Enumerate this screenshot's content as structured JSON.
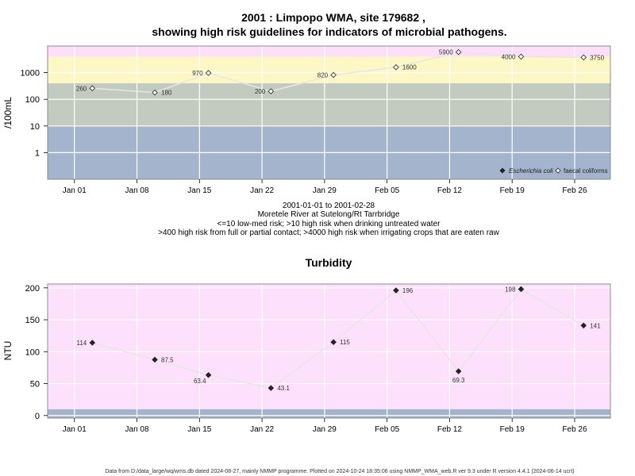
{
  "colors": {
    "band_low": "#a3b4cc",
    "band_mid": "#c3cbc0",
    "band_high": "#fdf6c5",
    "band_top": "#fde0f8",
    "turb_bg": "#fde0fc",
    "turb_low": "#a3b4cc",
    "line": "#e6e6e6",
    "grid": "#ffffff",
    "frame": "#8c8c8c"
  },
  "chart_data": [
    {
      "type": "line",
      "title": "2001 : Limpopo WMA, site 179682 ,",
      "subtitle": "showing high risk guidelines for indicators of microbial pathogens.",
      "ylabel": "/100mL",
      "yscale": "log",
      "ylim": [
        0.1,
        10000
      ],
      "yticks": [
        1,
        10,
        100,
        1000
      ],
      "ytick_labels": [
        "1",
        "10",
        "100",
        "1000"
      ],
      "xlim": [
        "2000-12-29",
        "2001-03-02"
      ],
      "xticks": [
        "2001-01-01",
        "2001-01-08",
        "2001-01-15",
        "2001-01-22",
        "2001-01-29",
        "2001-02-05",
        "2001-02-12",
        "2001-02-19",
        "2001-02-26"
      ],
      "xtick_labels": [
        "Jan 01",
        "Jan 08",
        "Jan 15",
        "Jan 22",
        "Jan 29",
        "Feb 05",
        "Feb 12",
        "Feb 19",
        "Feb 26"
      ],
      "grid": true,
      "bands": [
        {
          "from": 0.1,
          "to": 10,
          "color": "band_low"
        },
        {
          "from": 10,
          "to": 400,
          "color": "band_mid"
        },
        {
          "from": 400,
          "to": 4000,
          "color": "band_high"
        },
        {
          "from": 4000,
          "to": 10000,
          "color": "band_top"
        }
      ],
      "legend": {
        "position": "bottom-right",
        "entries": [
          {
            "label": "Escherichia coli",
            "marker": "filled-diamond",
            "italic": true
          },
          {
            "label": "faecal coliforms",
            "marker": "open-diamond",
            "italic": false
          }
        ]
      },
      "series": [
        {
          "name": "faecal coliforms",
          "marker": "open-diamond",
          "x": [
            "2001-01-03",
            "2001-01-10",
            "2001-01-16",
            "2001-01-23",
            "2001-01-30",
            "2001-02-06",
            "2001-02-13",
            "2001-02-20",
            "2001-02-27"
          ],
          "y": [
            260,
            180,
            970,
            200,
            820,
            1600,
            5900,
            4000,
            3750
          ],
          "labels": [
            "260",
            "180",
            "970",
            "200",
            "820",
            "1600",
            "5900",
            "4000",
            "3750"
          ]
        }
      ],
      "caption": [
        "2001-01-01 to 2001-02-28",
        "Moretele River at Sutelong/Rt Tarrbridge",
        "<=10 low-med risk; >10 high risk when drinking untreated water",
        ">400 high risk from full or partial contact; >4000 high risk when irrigating crops that are eaten raw"
      ]
    },
    {
      "type": "line",
      "title": "Turbidity",
      "ylabel": "NTU",
      "ylim": [
        -4,
        206
      ],
      "yticks": [
        0,
        50,
        100,
        150,
        200
      ],
      "ytick_labels": [
        "0",
        "50",
        "100",
        "150",
        "200"
      ],
      "xlim": [
        "2000-12-29",
        "2001-03-02"
      ],
      "xticks": [
        "2001-01-01",
        "2001-01-08",
        "2001-01-15",
        "2001-01-22",
        "2001-01-29",
        "2001-02-05",
        "2001-02-12",
        "2001-02-19",
        "2001-02-26"
      ],
      "xtick_labels": [
        "Jan 01",
        "Jan 08",
        "Jan 15",
        "Jan 22",
        "Jan 29",
        "Feb 05",
        "Feb 12",
        "Feb 19",
        "Feb 26"
      ],
      "grid": true,
      "bands": [
        {
          "from": -4,
          "to": 10,
          "color": "turb_low"
        },
        {
          "from": 10,
          "to": 206,
          "color": "turb_bg"
        }
      ],
      "series": [
        {
          "marker": "filled-diamond",
          "x": [
            "2001-01-03",
            "2001-01-10",
            "2001-01-16",
            "2001-01-23",
            "2001-01-30",
            "2001-02-06",
            "2001-02-13",
            "2001-02-20",
            "2001-02-27"
          ],
          "y": [
            114,
            87.5,
            63.4,
            43.1,
            115,
            196,
            69.3,
            198,
            141
          ],
          "labels": [
            "114",
            "87.5",
            "63.4",
            "43.1",
            "115",
            "196",
            "69.3",
            "198",
            "141"
          ]
        }
      ]
    }
  ],
  "footer": "Data from D:/data_large/wq/wms.db dated 2024-08-27, mainly NMMP programme. Plotted on 2024-10-24 18:35:06 using NMMP_WMA_web.R ver 9.3 under R version 4.4.1 (2024-06-14 ucrt)"
}
